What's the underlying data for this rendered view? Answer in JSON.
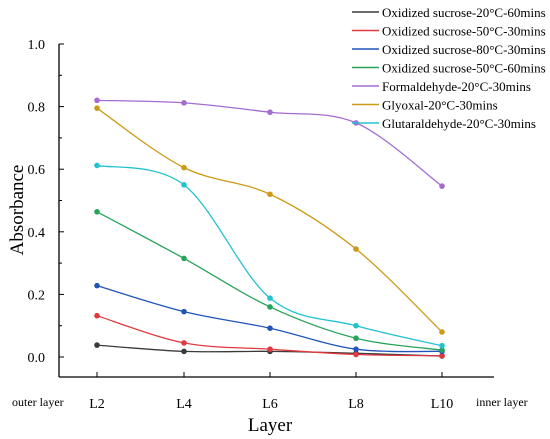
{
  "chart_data": {
    "type": "line",
    "categories": [
      "L2",
      "L4",
      "L6",
      "L8",
      "L10"
    ],
    "xlabel": "Layer",
    "ylabel": "Absorbance",
    "ylim": [
      0,
      1.0
    ],
    "yticks": [
      "0.0",
      "0.2",
      "0.4",
      "0.6",
      "0.8",
      "1.0"
    ],
    "x_start_note": "outer layer",
    "x_end_note": "inner layer",
    "legend_position": "top-right",
    "series": [
      {
        "name": "Oxidized sucrose-20°C-60mins",
        "color": "#3a3a3a",
        "values": [
          0.038,
          0.018,
          0.018,
          0.012,
          0.003
        ]
      },
      {
        "name": "Oxidized sucrose-50°C-30mins",
        "color": "#e0393f",
        "values": [
          0.132,
          0.045,
          0.025,
          0.008,
          0.004
        ]
      },
      {
        "name": "Oxidized sucrose-80°C-30mins",
        "color": "#2255b8",
        "values": [
          0.228,
          0.145,
          0.092,
          0.025,
          0.018
        ]
      },
      {
        "name": "Oxidized sucrose-50°C-60mins",
        "color": "#28a35a",
        "values": [
          0.464,
          0.315,
          0.16,
          0.06,
          0.022
        ]
      },
      {
        "name": "Formaldehyde-20°C-30mins",
        "color": "#a46bd1",
        "values": [
          0.82,
          0.812,
          0.782,
          0.748,
          0.546
        ]
      },
      {
        "name": "Glyoxal-20°C-30mins",
        "color": "#cc9a14",
        "values": [
          0.795,
          0.605,
          0.52,
          0.345,
          0.08
        ]
      },
      {
        "name": "Glutaraldehyde-20°C-30mins",
        "color": "#22c3cf",
        "values": [
          0.612,
          0.55,
          0.188,
          0.1,
          0.036
        ]
      }
    ]
  }
}
